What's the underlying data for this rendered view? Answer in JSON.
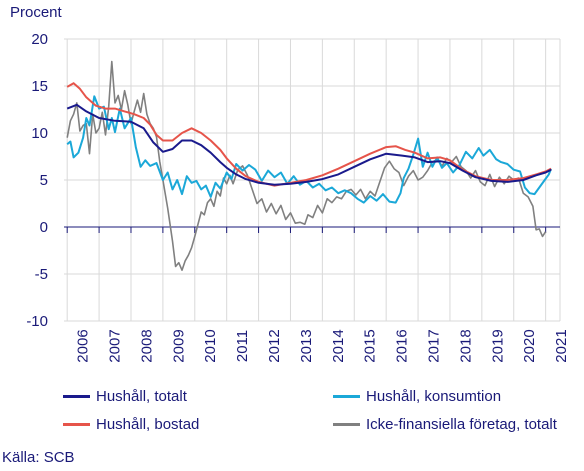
{
  "chart_data": {
    "type": "line",
    "ylabel": "Procent",
    "ylim": [
      -10,
      20
    ],
    "yticks": [
      20,
      15,
      10,
      5,
      0,
      -5,
      -10
    ],
    "xlim": [
      2005.9,
      2021.45
    ],
    "xticks": [
      "2006",
      "2007",
      "2008",
      "2009",
      "2010",
      "2011",
      "2012",
      "2013",
      "2014",
      "2015",
      "2016",
      "2017",
      "2018",
      "2019",
      "2020",
      "2021"
    ],
    "grid": true,
    "legend_position": "bottom",
    "source": "Källa: SCB",
    "series": [
      {
        "name": "Hushåll, totalt",
        "color": "#1a1a8c",
        "points": [
          [
            2006.0,
            12.6
          ],
          [
            2006.3,
            13.0
          ],
          [
            2006.6,
            12.3
          ],
          [
            2007.0,
            11.6
          ],
          [
            2007.5,
            11.3
          ],
          [
            2008.0,
            11.2
          ],
          [
            2008.4,
            10.5
          ],
          [
            2008.7,
            9.0
          ],
          [
            2009.0,
            8.0
          ],
          [
            2009.3,
            8.3
          ],
          [
            2009.6,
            9.2
          ],
          [
            2009.9,
            9.2
          ],
          [
            2010.2,
            8.7
          ],
          [
            2010.5,
            7.9
          ],
          [
            2010.8,
            6.9
          ],
          [
            2011.0,
            6.3
          ],
          [
            2011.3,
            5.6
          ],
          [
            2011.6,
            5.1
          ],
          [
            2012.0,
            4.7
          ],
          [
            2012.5,
            4.5
          ],
          [
            2013.0,
            4.6
          ],
          [
            2013.5,
            4.8
          ],
          [
            2014.0,
            5.1
          ],
          [
            2014.5,
            5.6
          ],
          [
            2015.0,
            6.4
          ],
          [
            2015.5,
            7.2
          ],
          [
            2016.0,
            7.8
          ],
          [
            2016.5,
            7.6
          ],
          [
            2016.9,
            7.4
          ],
          [
            2017.3,
            6.9
          ],
          [
            2017.7,
            7.0
          ],
          [
            2018.0,
            6.8
          ],
          [
            2018.4,
            6.0
          ],
          [
            2018.8,
            5.3
          ],
          [
            2019.3,
            4.9
          ],
          [
            2019.8,
            4.8
          ],
          [
            2020.3,
            5.0
          ],
          [
            2020.7,
            5.5
          ],
          [
            2021.0,
            5.8
          ],
          [
            2021.17,
            6.1
          ]
        ]
      },
      {
        "name": "Hushåll, konsumtion",
        "color": "#1ba8d8",
        "points": [
          [
            2006.0,
            8.8
          ],
          [
            2006.1,
            9.1
          ],
          [
            2006.2,
            7.4
          ],
          [
            2006.35,
            7.9
          ],
          [
            2006.5,
            9.5
          ],
          [
            2006.6,
            11.6
          ],
          [
            2006.7,
            10.8
          ],
          [
            2006.85,
            13.9
          ],
          [
            2007.0,
            12.6
          ],
          [
            2007.15,
            12.8
          ],
          [
            2007.3,
            10.4
          ],
          [
            2007.4,
            11.6
          ],
          [
            2007.5,
            10.1
          ],
          [
            2007.65,
            12.6
          ],
          [
            2007.8,
            10.5
          ],
          [
            2008.0,
            11.6
          ],
          [
            2008.15,
            8.5
          ],
          [
            2008.3,
            6.4
          ],
          [
            2008.45,
            7.1
          ],
          [
            2008.6,
            6.5
          ],
          [
            2008.8,
            6.8
          ],
          [
            2009.0,
            5.0
          ],
          [
            2009.15,
            5.8
          ],
          [
            2009.3,
            4.0
          ],
          [
            2009.45,
            5.0
          ],
          [
            2009.6,
            3.5
          ],
          [
            2009.75,
            5.4
          ],
          [
            2009.9,
            4.7
          ],
          [
            2010.05,
            4.9
          ],
          [
            2010.2,
            4.0
          ],
          [
            2010.35,
            4.4
          ],
          [
            2010.5,
            3.2
          ],
          [
            2010.65,
            4.7
          ],
          [
            2010.8,
            4.1
          ],
          [
            2011.0,
            5.8
          ],
          [
            2011.15,
            5.1
          ],
          [
            2011.3,
            6.7
          ],
          [
            2011.5,
            6.0
          ],
          [
            2011.7,
            6.6
          ],
          [
            2011.9,
            6.1
          ],
          [
            2012.1,
            4.9
          ],
          [
            2012.3,
            6.0
          ],
          [
            2012.5,
            5.3
          ],
          [
            2012.7,
            5.8
          ],
          [
            2012.9,
            4.6
          ],
          [
            2013.1,
            5.4
          ],
          [
            2013.3,
            4.5
          ],
          [
            2013.5,
            4.9
          ],
          [
            2013.7,
            4.2
          ],
          [
            2013.9,
            4.6
          ],
          [
            2014.1,
            3.9
          ],
          [
            2014.3,
            4.2
          ],
          [
            2014.5,
            3.6
          ],
          [
            2014.7,
            3.9
          ],
          [
            2014.9,
            3.6
          ],
          [
            2015.1,
            3.0
          ],
          [
            2015.3,
            2.6
          ],
          [
            2015.5,
            3.3
          ],
          [
            2015.7,
            2.8
          ],
          [
            2015.9,
            3.5
          ],
          [
            2016.1,
            2.7
          ],
          [
            2016.3,
            2.6
          ],
          [
            2016.45,
            3.6
          ],
          [
            2016.55,
            5.2
          ],
          [
            2016.7,
            6.2
          ],
          [
            2016.85,
            7.7
          ],
          [
            2017.0,
            9.4
          ],
          [
            2017.15,
            6.4
          ],
          [
            2017.3,
            7.9
          ],
          [
            2017.45,
            6.4
          ],
          [
            2017.6,
            7.4
          ],
          [
            2017.75,
            6.3
          ],
          [
            2017.9,
            6.8
          ],
          [
            2018.1,
            5.8
          ],
          [
            2018.3,
            6.6
          ],
          [
            2018.5,
            8.0
          ],
          [
            2018.7,
            7.3
          ],
          [
            2018.9,
            8.4
          ],
          [
            2019.05,
            7.6
          ],
          [
            2019.25,
            8.2
          ],
          [
            2019.45,
            7.2
          ],
          [
            2019.6,
            6.9
          ],
          [
            2019.8,
            6.7
          ],
          [
            2020.0,
            6.1
          ],
          [
            2020.2,
            5.9
          ],
          [
            2020.35,
            4.2
          ],
          [
            2020.5,
            3.6
          ],
          [
            2020.65,
            3.5
          ],
          [
            2020.8,
            4.2
          ],
          [
            2020.95,
            4.9
          ],
          [
            2021.1,
            5.6
          ],
          [
            2021.17,
            6.2
          ]
        ]
      },
      {
        "name": "Hushåll, bostad",
        "color": "#e6544a",
        "points": [
          [
            2006.0,
            14.9
          ],
          [
            2006.2,
            15.3
          ],
          [
            2006.4,
            14.7
          ],
          [
            2006.6,
            13.8
          ],
          [
            2006.9,
            12.9
          ],
          [
            2007.2,
            12.6
          ],
          [
            2007.5,
            12.6
          ],
          [
            2007.8,
            12.3
          ],
          [
            2008.1,
            12.0
          ],
          [
            2008.4,
            11.6
          ],
          [
            2008.6,
            10.9
          ],
          [
            2008.8,
            9.8
          ],
          [
            2009.0,
            9.2
          ],
          [
            2009.3,
            9.2
          ],
          [
            2009.6,
            10.0
          ],
          [
            2009.9,
            10.5
          ],
          [
            2010.2,
            10.0
          ],
          [
            2010.5,
            9.2
          ],
          [
            2010.8,
            8.2
          ],
          [
            2011.0,
            7.3
          ],
          [
            2011.3,
            6.2
          ],
          [
            2011.6,
            5.4
          ],
          [
            2012.0,
            4.8
          ],
          [
            2012.5,
            4.4
          ],
          [
            2013.0,
            4.7
          ],
          [
            2013.5,
            5.0
          ],
          [
            2014.0,
            5.5
          ],
          [
            2014.5,
            6.2
          ],
          [
            2015.0,
            7.0
          ],
          [
            2015.5,
            7.8
          ],
          [
            2016.0,
            8.5
          ],
          [
            2016.3,
            8.6
          ],
          [
            2016.6,
            8.2
          ],
          [
            2016.9,
            7.9
          ],
          [
            2017.3,
            7.3
          ],
          [
            2017.7,
            7.4
          ],
          [
            2018.0,
            7.1
          ],
          [
            2018.4,
            6.1
          ],
          [
            2018.8,
            5.4
          ],
          [
            2019.3,
            5.0
          ],
          [
            2019.8,
            5.0
          ],
          [
            2020.3,
            5.2
          ],
          [
            2020.7,
            5.6
          ],
          [
            2021.0,
            5.9
          ],
          [
            2021.17,
            6.2
          ]
        ]
      },
      {
        "name": "Icke-finansiella företag, totalt",
        "color": "#808080",
        "points": [
          [
            2006.0,
            9.5
          ],
          [
            2006.1,
            11.3
          ],
          [
            2006.2,
            12.0
          ],
          [
            2006.3,
            13.2
          ],
          [
            2006.4,
            10.2
          ],
          [
            2006.5,
            10.8
          ],
          [
            2006.6,
            11.0
          ],
          [
            2006.7,
            7.8
          ],
          [
            2006.8,
            12.0
          ],
          [
            2006.9,
            10.0
          ],
          [
            2007.0,
            10.5
          ],
          [
            2007.1,
            12.2
          ],
          [
            2007.2,
            9.8
          ],
          [
            2007.3,
            12.8
          ],
          [
            2007.4,
            17.6
          ],
          [
            2007.5,
            13.2
          ],
          [
            2007.6,
            14.0
          ],
          [
            2007.7,
            12.5
          ],
          [
            2007.8,
            14.5
          ],
          [
            2007.9,
            13.0
          ],
          [
            2008.0,
            11.0
          ],
          [
            2008.1,
            12.3
          ],
          [
            2008.2,
            13.5
          ],
          [
            2008.3,
            12.2
          ],
          [
            2008.4,
            14.2
          ],
          [
            2008.5,
            12.0
          ],
          [
            2008.6,
            11.0
          ],
          [
            2008.7,
            10.5
          ],
          [
            2008.8,
            9.6
          ],
          [
            2008.9,
            7.0
          ],
          [
            2009.0,
            5.0
          ],
          [
            2009.15,
            2.0
          ],
          [
            2009.3,
            -1.5
          ],
          [
            2009.4,
            -4.2
          ],
          [
            2009.5,
            -3.8
          ],
          [
            2009.6,
            -4.6
          ],
          [
            2009.7,
            -3.6
          ],
          [
            2009.8,
            -3.0
          ],
          [
            2009.9,
            -2.2
          ],
          [
            2010.0,
            -1.0
          ],
          [
            2010.1,
            0.3
          ],
          [
            2010.2,
            1.6
          ],
          [
            2010.3,
            1.3
          ],
          [
            2010.4,
            2.6
          ],
          [
            2010.5,
            3.0
          ],
          [
            2010.6,
            2.2
          ],
          [
            2010.7,
            3.8
          ],
          [
            2010.8,
            3.3
          ],
          [
            2010.9,
            5.2
          ],
          [
            2011.0,
            4.6
          ],
          [
            2011.1,
            5.5
          ],
          [
            2011.2,
            4.6
          ],
          [
            2011.35,
            6.1
          ],
          [
            2011.5,
            6.5
          ],
          [
            2011.65,
            5.5
          ],
          [
            2011.8,
            4.0
          ],
          [
            2011.95,
            2.5
          ],
          [
            2012.1,
            3.0
          ],
          [
            2012.25,
            1.6
          ],
          [
            2012.4,
            2.5
          ],
          [
            2012.55,
            1.4
          ],
          [
            2012.7,
            2.3
          ],
          [
            2012.85,
            0.8
          ],
          [
            2013.0,
            1.5
          ],
          [
            2013.15,
            0.4
          ],
          [
            2013.3,
            0.5
          ],
          [
            2013.45,
            0.3
          ],
          [
            2013.55,
            1.3
          ],
          [
            2013.7,
            1.0
          ],
          [
            2013.85,
            2.3
          ],
          [
            2014.0,
            1.5
          ],
          [
            2014.15,
            3.0
          ],
          [
            2014.3,
            2.6
          ],
          [
            2014.45,
            3.2
          ],
          [
            2014.6,
            3.0
          ],
          [
            2014.75,
            3.8
          ],
          [
            2014.9,
            4.0
          ],
          [
            2015.05,
            3.4
          ],
          [
            2015.2,
            4.0
          ],
          [
            2015.35,
            3.0
          ],
          [
            2015.5,
            3.8
          ],
          [
            2015.65,
            3.3
          ],
          [
            2015.8,
            4.8
          ],
          [
            2015.95,
            6.3
          ],
          [
            2016.1,
            7.0
          ],
          [
            2016.25,
            6.2
          ],
          [
            2016.4,
            5.8
          ],
          [
            2016.55,
            4.4
          ],
          [
            2016.7,
            5.4
          ],
          [
            2016.85,
            6.0
          ],
          [
            2017.0,
            5.0
          ],
          [
            2017.15,
            5.3
          ],
          [
            2017.3,
            6.0
          ],
          [
            2017.45,
            6.9
          ],
          [
            2017.6,
            7.2
          ],
          [
            2017.75,
            6.5
          ],
          [
            2017.9,
            7.3
          ],
          [
            2018.05,
            6.9
          ],
          [
            2018.2,
            7.5
          ],
          [
            2018.35,
            6.4
          ],
          [
            2018.5,
            6.0
          ],
          [
            2018.65,
            5.2
          ],
          [
            2018.8,
            6.0
          ],
          [
            2018.95,
            4.8
          ],
          [
            2019.1,
            4.4
          ],
          [
            2019.25,
            5.6
          ],
          [
            2019.4,
            4.3
          ],
          [
            2019.55,
            5.3
          ],
          [
            2019.7,
            4.6
          ],
          [
            2019.85,
            5.4
          ],
          [
            2020.0,
            5.0
          ],
          [
            2020.15,
            5.2
          ],
          [
            2020.3,
            3.6
          ],
          [
            2020.45,
            3.2
          ],
          [
            2020.6,
            2.2
          ],
          [
            2020.7,
            -0.3
          ],
          [
            2020.8,
            -0.2
          ],
          [
            2020.9,
            -1.0
          ],
          [
            2021.0,
            -0.5
          ]
        ]
      }
    ]
  },
  "legend": {
    "item1": "Hushåll, totalt",
    "item2": "Hushåll, konsumtion",
    "item3": "Hushåll, bostad",
    "item4": "Icke-finansiella företag, totalt"
  }
}
